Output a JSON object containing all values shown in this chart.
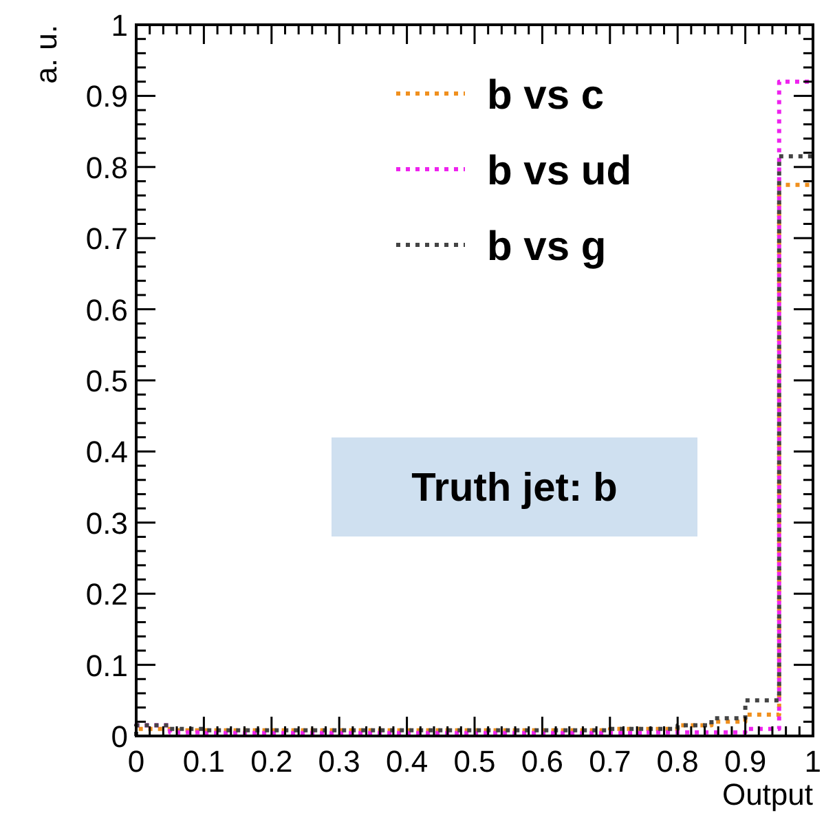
{
  "chart_data": {
    "type": "histogram",
    "xlabel": "Output",
    "ylabel": "a. u.",
    "bins": [
      0,
      0.05,
      0.1,
      0.15,
      0.2,
      0.25,
      0.3,
      0.35,
      0.4,
      0.45,
      0.5,
      0.55,
      0.6,
      0.65,
      0.7,
      0.75,
      0.8,
      0.85,
      0.9,
      0.95,
      1
    ],
    "series": [
      {
        "name": "b vs c",
        "color": "#f0901e",
        "values": [
          0.01,
          0.008,
          0.008,
          0.008,
          0.008,
          0.008,
          0.008,
          0.008,
          0.008,
          0.008,
          0.008,
          0.008,
          0.008,
          0.008,
          0.01,
          0.01,
          0.015,
          0.02,
          0.03,
          0.775
        ]
      },
      {
        "name": "b vs ud",
        "color": "#ee22ee",
        "values": [
          0.015,
          0.005,
          0.004,
          0.004,
          0.004,
          0.004,
          0.004,
          0.004,
          0.004,
          0.004,
          0.004,
          0.004,
          0.004,
          0.004,
          0.004,
          0.005,
          0.005,
          0.005,
          0.01,
          0.92
        ]
      },
      {
        "name": "b vs g",
        "color": "#444444",
        "values": [
          0.015,
          0.01,
          0.008,
          0.008,
          0.008,
          0.008,
          0.008,
          0.008,
          0.008,
          0.008,
          0.008,
          0.008,
          0.008,
          0.008,
          0.01,
          0.01,
          0.015,
          0.025,
          0.05,
          0.815
        ]
      }
    ],
    "xlim": [
      0,
      1
    ],
    "xticks": [
      0,
      0.1,
      0.2,
      0.3,
      0.4,
      0.5,
      0.6,
      0.7,
      0.8,
      0.9,
      1
    ],
    "ylim": [
      0,
      1
    ],
    "yticks": [
      0,
      0.1,
      0.2,
      0.3,
      0.4,
      0.5,
      0.6,
      0.7,
      0.8,
      0.9,
      1
    ],
    "annotations": [
      "Truth jet: b"
    ],
    "legend": "top right",
    "line_style": "dotted",
    "grid": false
  }
}
